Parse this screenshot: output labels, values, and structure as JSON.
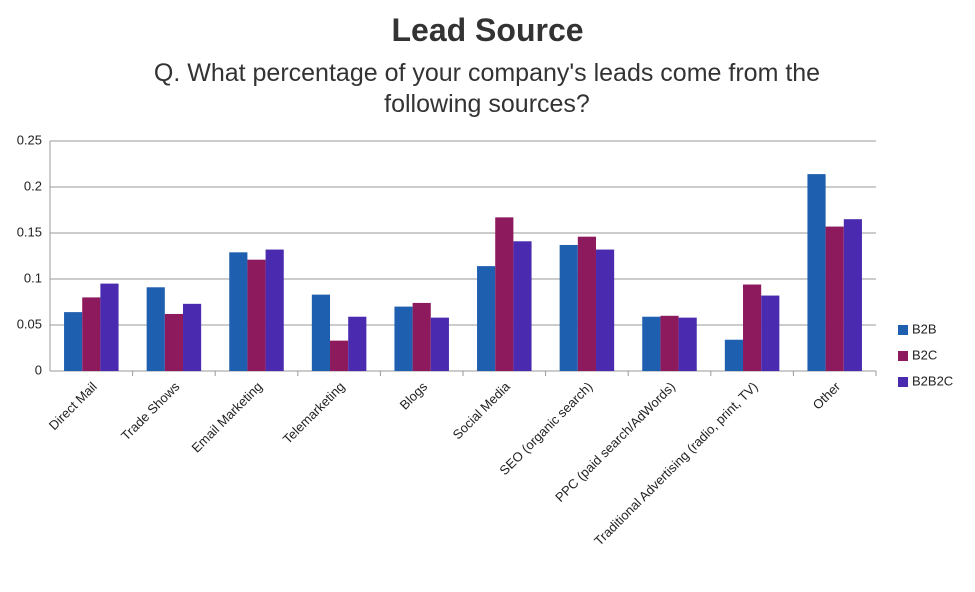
{
  "chart_data": {
    "type": "bar",
    "title": "Lead Source",
    "subtitle": "Q. What percentage of your company's leads come from the following sources?",
    "categories": [
      "Direct Mail",
      "Trade Shows",
      "Email Marketing",
      "Telemarketing",
      "Blogs",
      "Social Media",
      "SEO (organic search)",
      "PPC (paid search/AdWords)",
      "Traditional Advertising (radio, print, TV)",
      "Other"
    ],
    "series": [
      {
        "name": "B2B",
        "color": "#1f5fb0",
        "values": [
          0.064,
          0.091,
          0.129,
          0.083,
          0.07,
          0.114,
          0.137,
          0.059,
          0.034,
          0.214
        ]
      },
      {
        "name": "B2C",
        "color": "#8e1a5e",
        "values": [
          0.08,
          0.062,
          0.121,
          0.033,
          0.074,
          0.167,
          0.146,
          0.06,
          0.094,
          0.157
        ]
      },
      {
        "name": "B2B2C",
        "color": "#4a2bb0",
        "values": [
          0.095,
          0.073,
          0.132,
          0.059,
          0.058,
          0.141,
          0.132,
          0.058,
          0.082,
          0.165
        ]
      }
    ],
    "ylim": [
      0,
      0.25
    ],
    "yticks": [
      0,
      0.05,
      0.1,
      0.15,
      0.2,
      0.25
    ],
    "grid": true,
    "legend": "right"
  }
}
